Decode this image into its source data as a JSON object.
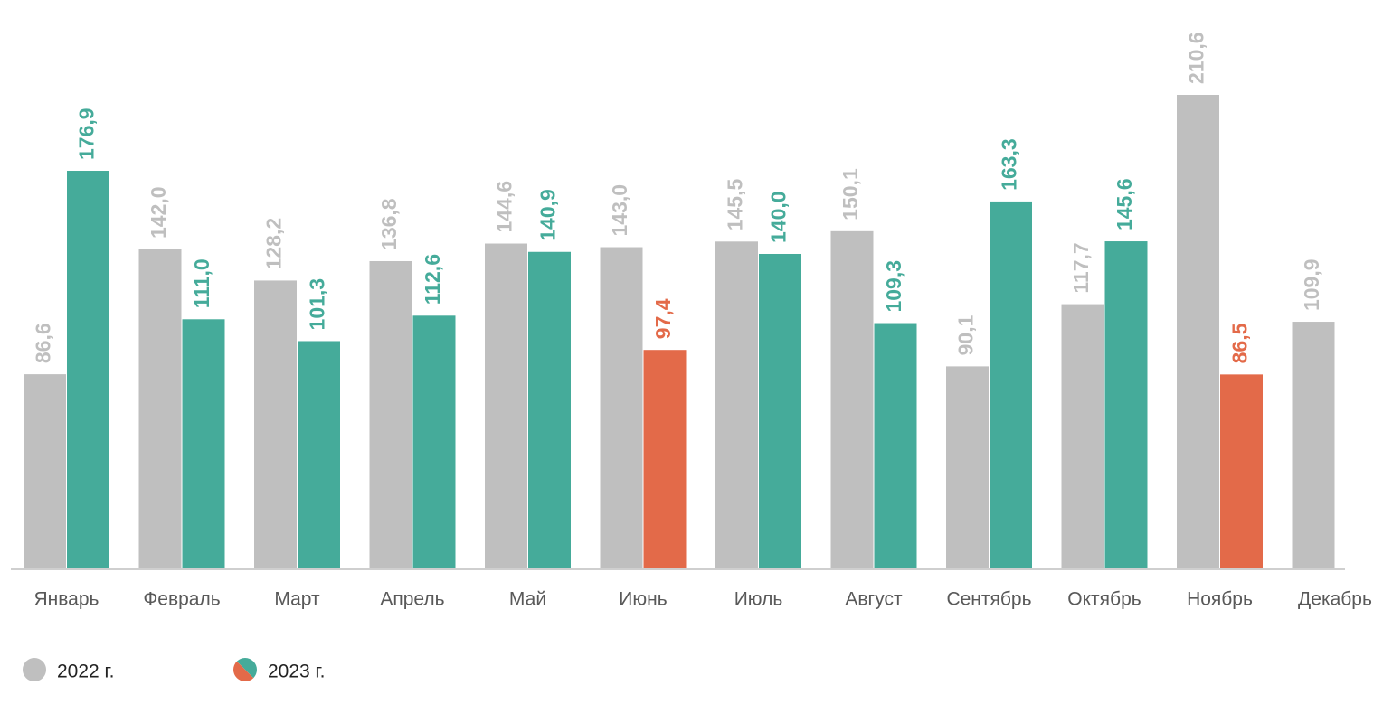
{
  "chart_data": {
    "type": "bar",
    "categories": [
      "Январь",
      "Февраль",
      "Март",
      "Апрель",
      "Май",
      "Июнь",
      "Июль",
      "Август",
      "Сентябрь",
      "Октябрь",
      "Ноябрь",
      "Декабрь"
    ],
    "series": [
      {
        "name": "2022 г.",
        "color": "#bfbfbf",
        "values": [
          86.6,
          142.0,
          128.2,
          136.8,
          144.6,
          143.0,
          145.5,
          150.1,
          90.1,
          117.7,
          210.6,
          109.9
        ],
        "value_labels": [
          "86,6",
          "142,0",
          "128,2",
          "136,8",
          "144,6",
          "143,0",
          "145,5",
          "150,1",
          "90,1",
          "117,7",
          "210,6",
          "109,9"
        ]
      },
      {
        "name": "2023 г.",
        "color": "#45ab9a",
        "colors": [
          "#45ab9a",
          "#45ab9a",
          "#45ab9a",
          "#45ab9a",
          "#45ab9a",
          "#e36a49",
          "#45ab9a",
          "#45ab9a",
          "#45ab9a",
          "#45ab9a",
          "#e36a49",
          null
        ],
        "values": [
          176.9,
          111.0,
          101.3,
          112.6,
          140.9,
          97.4,
          140.0,
          109.3,
          163.3,
          145.6,
          86.5,
          null
        ],
        "value_labels": [
          "176,9",
          "111,0",
          "101,3",
          "112,6",
          "140,9",
          "97,4",
          "140,0",
          "109,3",
          "163,3",
          "145,6",
          "86,5",
          null
        ]
      }
    ]
  }
}
